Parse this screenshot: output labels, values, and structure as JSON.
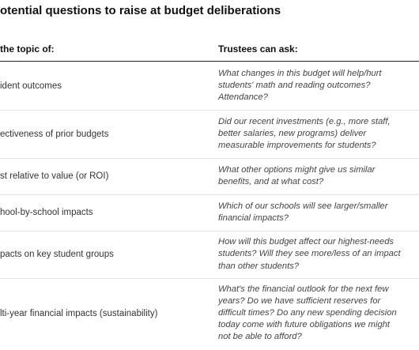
{
  "header": {
    "title": "otential questions to raise at budget deliberations"
  },
  "table": {
    "columns": [
      "the topic of:",
      "Trustees can ask:"
    ],
    "rows": [
      [
        "ident outcomes",
        [
          "What changes in this budget will help/hurt",
          "students' math and reading outcomes?",
          "Attendance?"
        ]
      ],
      [
        "ectiveness of prior budgets",
        [
          "Did our recent investments (e.g., more staff,",
          "better salaries, new programs) deliver",
          "measurable improvements for students?"
        ]
      ],
      [
        "st relative to value (or ROI)",
        [
          "What other options might give us similar",
          "benefits, and at what cost?"
        ]
      ],
      [
        "hool-by-school impacts",
        [
          "Which of our schools will see larger/smaller",
          "financial impacts?"
        ]
      ],
      [
        "pacts on key student groups",
        [
          "How will this budget affect our highest-needs",
          "students? Will they see more/less of an impact",
          "than other students?"
        ]
      ],
      [
        "lti-year financial impacts (sustainability)",
        [
          "What's the financial outlook for the next few",
          "years? Do we have sufficient reserves for",
          "difficult times? Do any new spending decision",
          "today come with future obligations we might",
          "not be able to afford?"
        ]
      ]
    ]
  }
}
